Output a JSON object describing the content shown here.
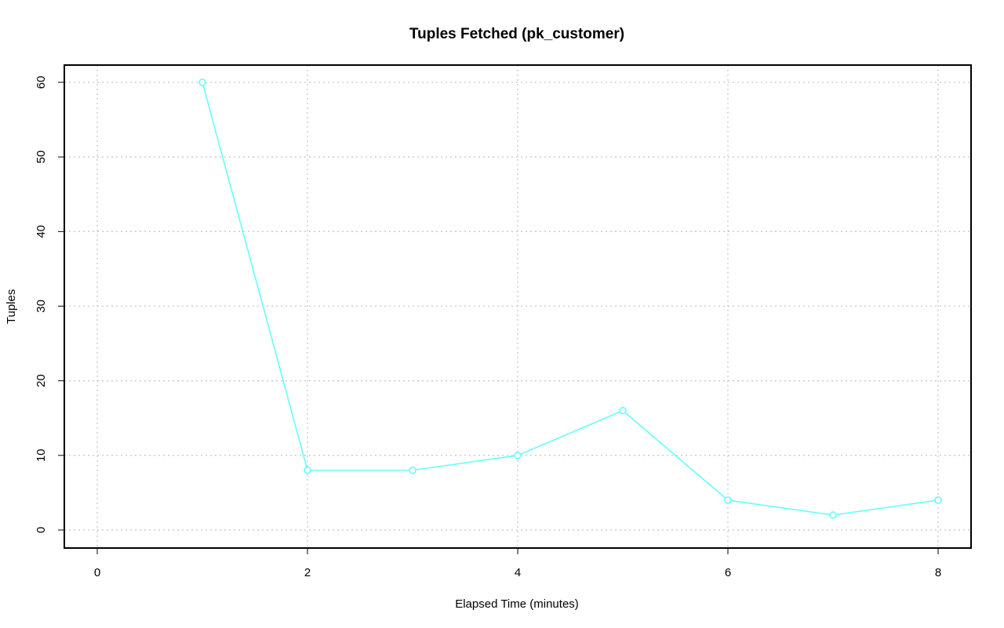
{
  "chart_data": {
    "type": "line",
    "title": "Tuples Fetched (pk_customer)",
    "xlabel": "Elapsed Time (minutes)",
    "ylabel": "Tuples",
    "xlim": [
      0,
      8
    ],
    "ylim": [
      0,
      60
    ],
    "x_ticks": [
      "0",
      "2",
      "4",
      "6",
      "8"
    ],
    "y_ticks": [
      "0",
      "10",
      "20",
      "30",
      "40",
      "50",
      "60"
    ],
    "grid": true,
    "grid_style": "dotted",
    "series": [
      {
        "color": "#66ffff",
        "marker": "open-circle",
        "x": [
          1,
          2,
          3,
          4,
          5,
          6,
          7,
          8
        ],
        "y": [
          60,
          8,
          8,
          10,
          16,
          4,
          2,
          4
        ]
      }
    ]
  }
}
